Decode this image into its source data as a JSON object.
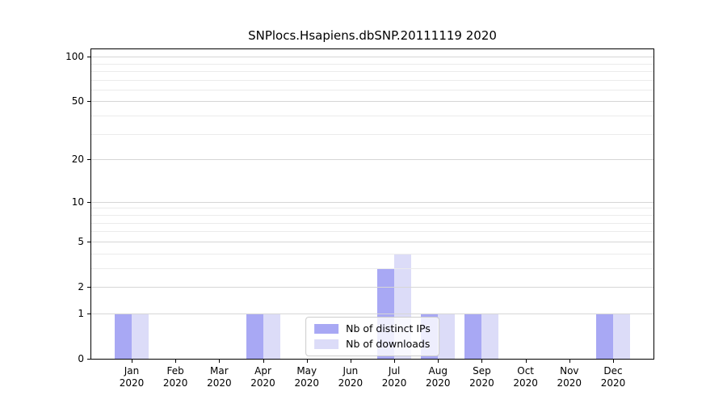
{
  "chart_data": {
    "type": "bar",
    "title": "SNPlocs.Hsapiens.dbSNP.20111119 2020",
    "categories": [
      "Jan",
      "Feb",
      "Mar",
      "Apr",
      "May",
      "Jun",
      "Jul",
      "Aug",
      "Sep",
      "Oct",
      "Nov",
      "Dec"
    ],
    "year_label": "2020",
    "series": [
      {
        "name": "Nb of distinct IPs",
        "color": "#a8a8f4",
        "values": [
          1,
          0,
          0,
          1,
          0,
          0,
          3,
          1,
          1,
          0,
          0,
          1
        ]
      },
      {
        "name": "Nb of downloads",
        "color": "#dcdcf8",
        "values": [
          1,
          0,
          0,
          1,
          0,
          0,
          4,
          1,
          1,
          0,
          0,
          1
        ]
      }
    ],
    "yscale": "log1p",
    "ylim": [
      0,
      112
    ],
    "yticks": [
      0,
      1,
      2,
      5,
      10,
      20,
      50,
      100
    ],
    "minor_yticks": [
      3,
      4,
      6,
      7,
      8,
      9,
      30,
      40,
      60,
      70,
      80,
      90
    ],
    "grid": true,
    "legend_position": "lower center",
    "colors": {
      "spine": "#000000",
      "grid_major": "#d6d6d6",
      "grid_minor": "#ebebeb",
      "legend_border": "#cccccc"
    }
  }
}
